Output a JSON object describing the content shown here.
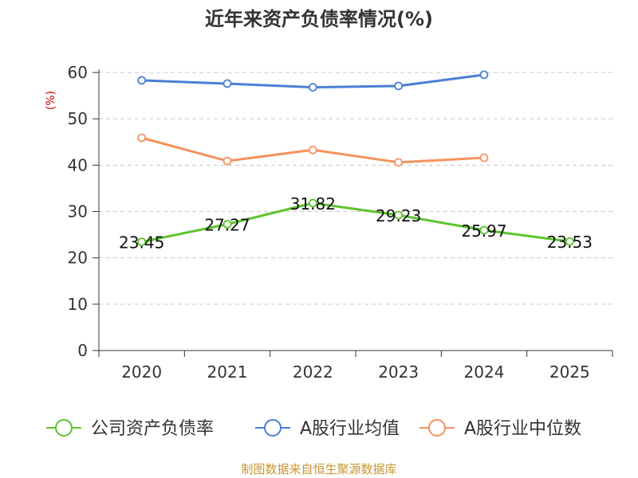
{
  "chart_data": {
    "type": "line",
    "title": "近年来资产负债率情况(%)",
    "ylabel": "(%)",
    "categories": [
      "2020",
      "2021",
      "2022",
      "2023",
      "2024",
      "2025"
    ],
    "ylim": [
      0,
      60
    ],
    "yticks": [
      0,
      10,
      20,
      30,
      40,
      50,
      60
    ],
    "grid": true,
    "legend_position": "bottom",
    "series": [
      {
        "name": "公司资产负债率",
        "color": "#5bc42c",
        "values": [
          23.45,
          27.27,
          31.82,
          29.23,
          25.97,
          23.53
        ],
        "labels": [
          "23.45",
          "27.27",
          "31.82",
          "29.23",
          "25.97",
          "23.53"
        ]
      },
      {
        "name": "A股行业均值",
        "color": "#4a7fd6",
        "values": [
          58.3,
          57.6,
          56.8,
          57.1,
          59.5,
          null
        ]
      },
      {
        "name": "A股行业中位数",
        "color": "#f5925e",
        "values": [
          45.9,
          40.9,
          43.3,
          40.6,
          41.6,
          null
        ]
      }
    ],
    "source": "制图数据来自恒生聚源数据库"
  }
}
